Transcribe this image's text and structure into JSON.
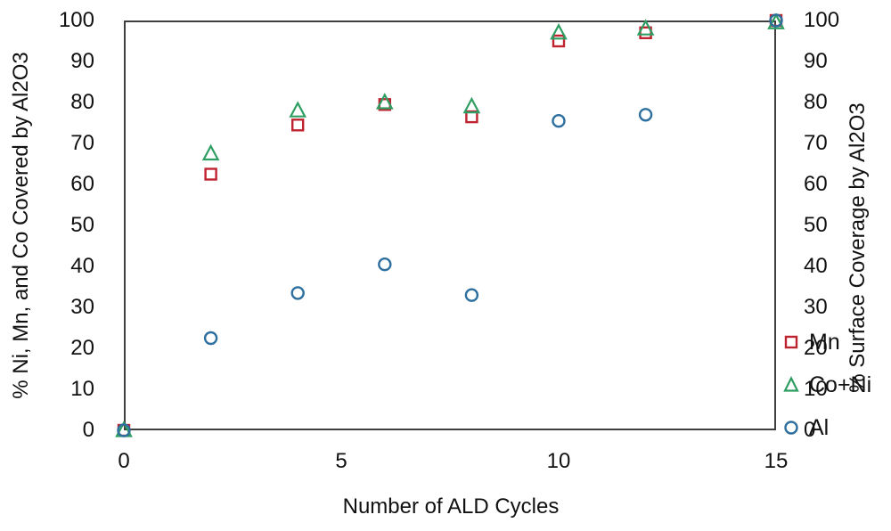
{
  "chart_data": {
    "type": "scatter",
    "title": "",
    "xlabel": "Number of ALD Cycles",
    "ylabel_left": "% Ni, Mn, and Co Covered by Al2O3",
    "ylabel_right": "% Surface Coverage by Al2O3",
    "xlim": [
      0,
      15
    ],
    "ylim": [
      0,
      100
    ],
    "x_ticks": [
      0,
      5,
      10,
      15
    ],
    "y_ticks": [
      0,
      10,
      20,
      30,
      40,
      50,
      60,
      70,
      80,
      90,
      100
    ],
    "grid": false,
    "legend_position": "inside-right",
    "x": [
      0,
      2,
      4,
      6,
      8,
      10,
      12,
      15
    ],
    "series": [
      {
        "name": "Mn",
        "marker": "square",
        "color": "#c02330",
        "values": [
          0,
          62.5,
          74.5,
          79.5,
          76.5,
          95,
          97,
          100
        ]
      },
      {
        "name": "Co+Ni",
        "marker": "triangle",
        "color": "#2f9e62",
        "values": [
          0,
          67.5,
          78,
          80,
          79,
          97,
          98,
          99.5
        ]
      },
      {
        "name": "Al",
        "marker": "circle",
        "color": "#2d6f9e",
        "values": [
          0,
          22.5,
          33.5,
          40.5,
          33,
          75.5,
          77,
          100
        ]
      }
    ]
  },
  "frame_color": "#3f3f3f"
}
